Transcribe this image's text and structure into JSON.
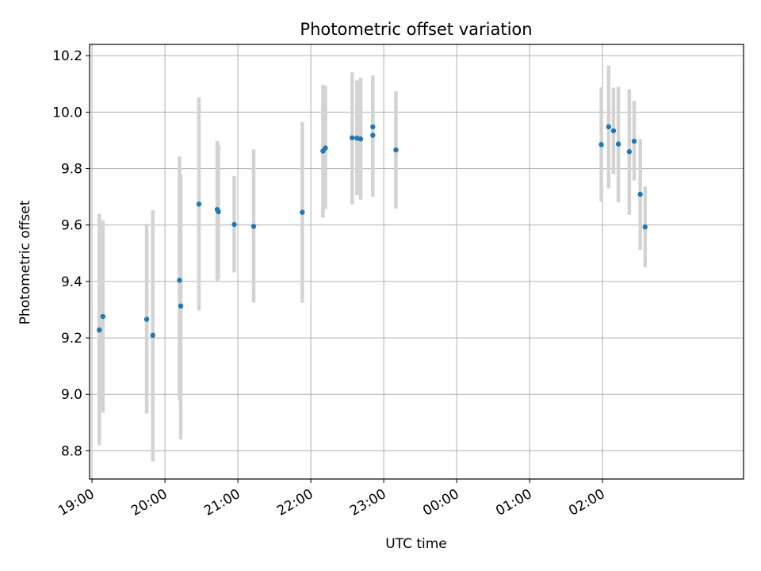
{
  "chart_data": {
    "type": "scatter",
    "title": "Photometric offset variation",
    "xlabel": "UTC time",
    "ylabel": "Photometric offset",
    "x_axis_type": "time",
    "xlim": [
      "18:58",
      "03:56"
    ],
    "ylim": [
      8.7,
      10.24
    ],
    "grid": true,
    "x_ticks": [
      "19:00",
      "20:00",
      "21:00",
      "22:00",
      "23:00",
      "00:00",
      "01:00",
      "02:00"
    ],
    "y_ticks": [
      "8.8",
      "9.0",
      "9.2",
      "9.4",
      "9.6",
      "9.8",
      "10.0",
      "10.2"
    ],
    "y_tick_values": [
      8.8,
      9.0,
      9.2,
      9.4,
      9.6,
      9.8,
      10.0,
      10.2
    ],
    "colors": {
      "point": "#1f77b4",
      "error_bar": "#d3d3d3",
      "grid": "#b0b0b0"
    },
    "series": [
      {
        "points": [
          {
            "x": "19:06",
            "y": 9.228,
            "ylo": 8.82,
            "yhi": 9.64
          },
          {
            "x": "19:09",
            "y": 9.276,
            "ylo": 8.935,
            "yhi": 9.617
          },
          {
            "x": "19:45",
            "y": 9.266,
            "ylo": 8.932,
            "yhi": 9.604
          },
          {
            "x": "19:50",
            "y": 9.209,
            "ylo": 8.763,
            "yhi": 9.652
          },
          {
            "x": "20:12",
            "y": 9.404,
            "ylo": 8.98,
            "yhi": 9.843
          },
          {
            "x": "20:13",
            "y": 9.313,
            "ylo": 8.84,
            "yhi": 9.78
          },
          {
            "x": "20:28",
            "y": 9.674,
            "ylo": 9.297,
            "yhi": 10.053
          },
          {
            "x": "20:43",
            "y": 9.655,
            "ylo": 9.403,
            "yhi": 9.898
          },
          {
            "x": "20:44",
            "y": 9.647,
            "ylo": 9.41,
            "yhi": 9.884
          },
          {
            "x": "20:57",
            "y": 9.602,
            "ylo": 9.432,
            "yhi": 9.774
          },
          {
            "x": "21:13",
            "y": 9.595,
            "ylo": 9.325,
            "yhi": 9.868
          },
          {
            "x": "21:53",
            "y": 9.645,
            "ylo": 9.325,
            "yhi": 9.965
          },
          {
            "x": "22:10",
            "y": 9.862,
            "ylo": 9.626,
            "yhi": 10.097
          },
          {
            "x": "22:12",
            "y": 9.873,
            "ylo": 9.657,
            "yhi": 10.093
          },
          {
            "x": "22:34",
            "y": 9.909,
            "ylo": 9.673,
            "yhi": 10.141
          },
          {
            "x": "22:38",
            "y": 9.908,
            "ylo": 9.706,
            "yhi": 10.112
          },
          {
            "x": "22:41",
            "y": 9.905,
            "ylo": 9.69,
            "yhi": 10.122
          },
          {
            "x": "22:51",
            "y": 9.918,
            "ylo": 9.72,
            "yhi": 10.11
          },
          {
            "x": "22:51",
            "y": 9.948,
            "ylo": 9.7,
            "yhi": 10.13
          },
          {
            "x": "23:10",
            "y": 9.866,
            "ylo": 9.658,
            "yhi": 10.074
          },
          {
            "x": "01:59",
            "y": 9.885,
            "ylo": 9.683,
            "yhi": 10.088
          },
          {
            "x": "02:05",
            "y": 9.948,
            "ylo": 9.73,
            "yhi": 10.165
          },
          {
            "x": "02:09",
            "y": 9.934,
            "ylo": 9.78,
            "yhi": 10.087
          },
          {
            "x": "02:13",
            "y": 9.887,
            "ylo": 9.68,
            "yhi": 10.09
          },
          {
            "x": "02:22",
            "y": 9.86,
            "ylo": 9.636,
            "yhi": 10.081
          },
          {
            "x": "02:26",
            "y": 9.897,
            "ylo": 9.758,
            "yhi": 10.04
          },
          {
            "x": "02:31",
            "y": 9.709,
            "ylo": 9.512,
            "yhi": 9.905
          },
          {
            "x": "02:35",
            "y": 9.593,
            "ylo": 9.45,
            "yhi": 9.737
          }
        ]
      }
    ]
  }
}
